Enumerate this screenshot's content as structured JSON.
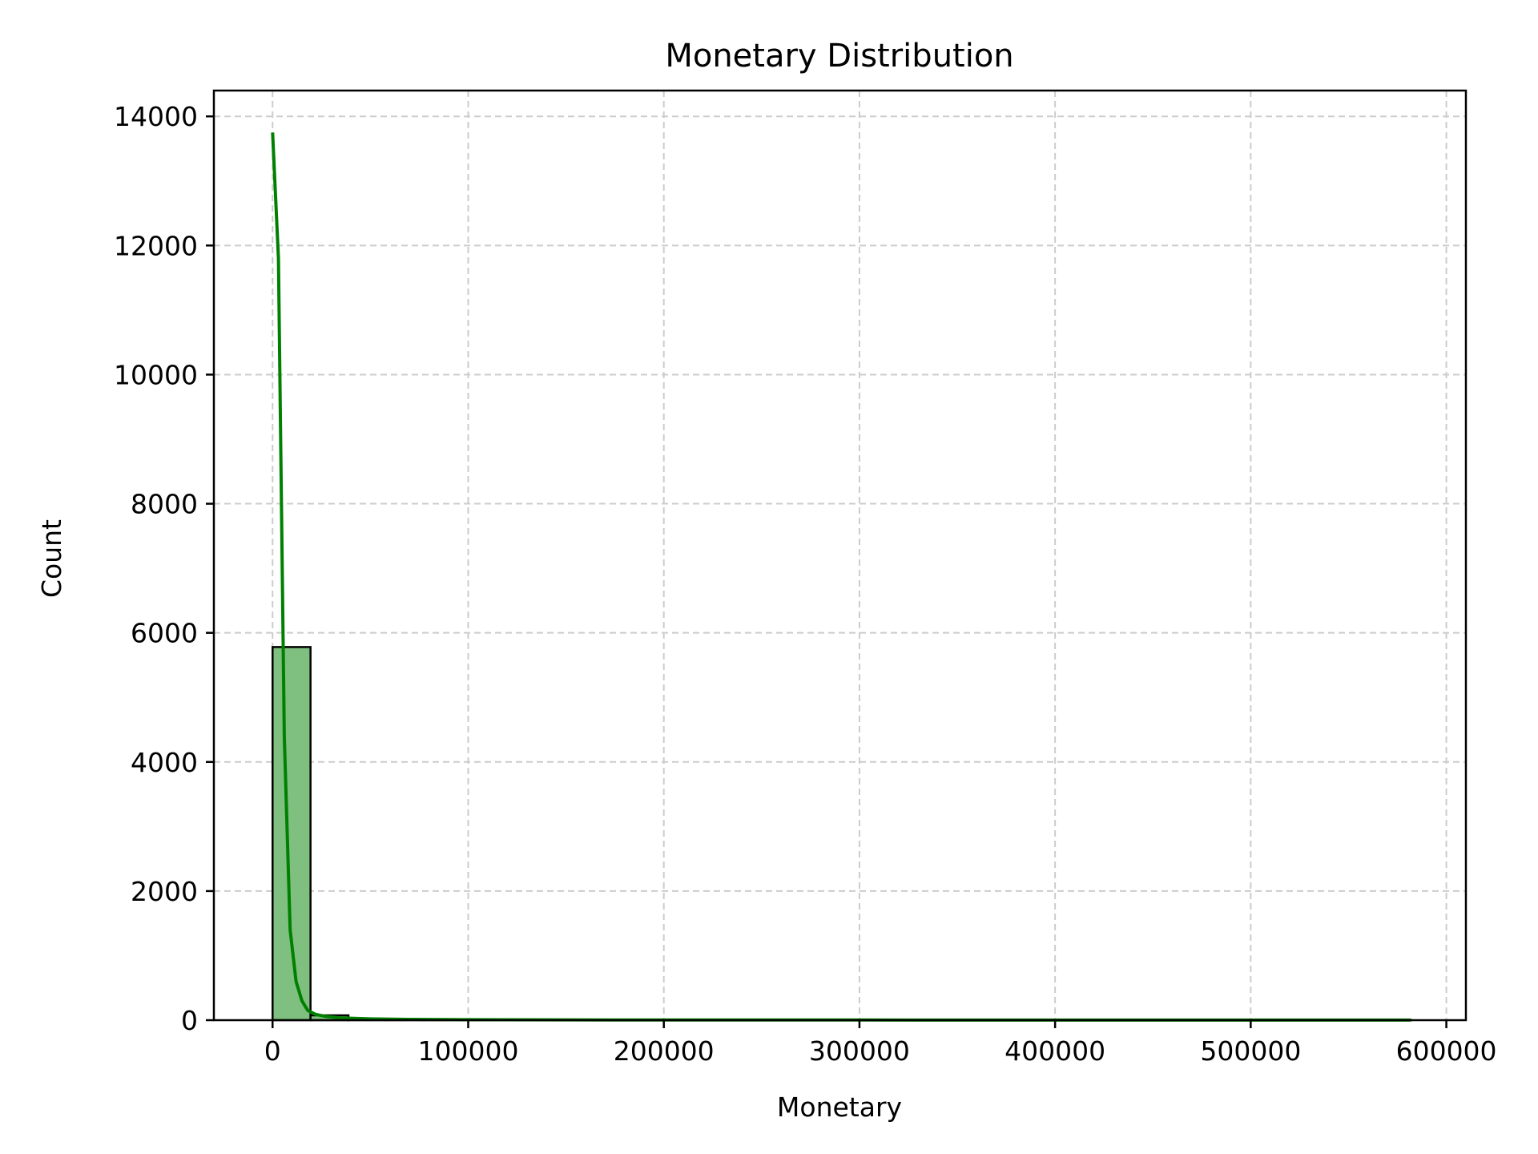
{
  "chart_data": {
    "type": "bar",
    "title": "Monetary Distribution",
    "xlabel": "Monetary",
    "ylabel": "Count",
    "xlim": [
      -30000,
      610000
    ],
    "ylim": [
      0,
      14400
    ],
    "xticks": [
      0,
      100000,
      200000,
      300000,
      400000,
      500000,
      600000
    ],
    "xtick_labels": [
      "0",
      "100000",
      "200000",
      "300000",
      "400000",
      "500000",
      "600000"
    ],
    "yticks": [
      0,
      2000,
      4000,
      6000,
      8000,
      10000,
      12000,
      14000
    ],
    "ytick_labels": [
      "0",
      "2000",
      "4000",
      "6000",
      "8000",
      "10000",
      "12000",
      "14000"
    ],
    "grid": true,
    "histogram": {
      "bin_edges": [
        0,
        19400,
        38800,
        58200,
        77600,
        97000,
        116400,
        135800,
        155200,
        174600,
        194000,
        213400,
        232800,
        252200,
        271600,
        291000,
        310400,
        329800,
        349200,
        368600,
        388000,
        407400,
        426800,
        446200,
        465600,
        485000,
        504400,
        523800,
        543200,
        562600,
        582000
      ],
      "counts": [
        5780,
        75,
        12,
        6,
        4,
        3,
        3,
        2,
        2,
        1,
        1,
        1,
        1,
        1,
        1,
        1,
        1,
        1,
        1,
        1,
        1,
        1,
        1,
        1,
        1,
        1,
        1,
        1,
        1,
        1
      ]
    },
    "kde": {
      "x": [
        0,
        3000,
        6000,
        9000,
        12000,
        15000,
        18000,
        22000,
        27000,
        35000,
        50000,
        70000,
        100000,
        150000,
        200000,
        300000,
        400000,
        500000,
        582000
      ],
      "y": [
        13750,
        11800,
        4400,
        1400,
        600,
        300,
        150,
        90,
        60,
        35,
        20,
        12,
        8,
        5,
        3,
        2,
        1,
        1,
        1
      ]
    },
    "colors": {
      "bar_fill": "#7fbf7f",
      "bar_edge": "#000000",
      "kde_line": "#008000",
      "grid": "#cccccc"
    }
  }
}
